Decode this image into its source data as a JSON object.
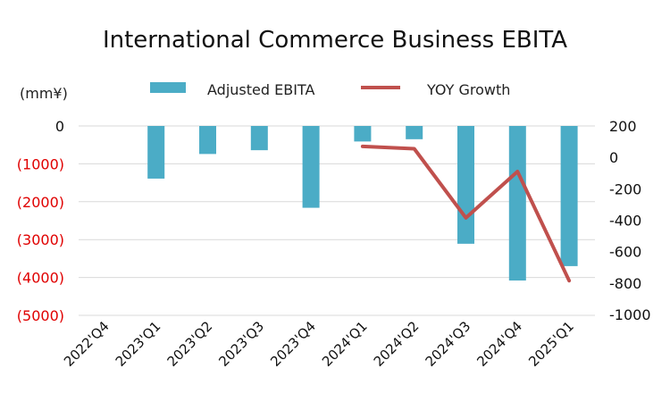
{
  "chart_data": {
    "type": "bar",
    "title": "International Commerce Business EBITA",
    "y_unit_label": "(mm¥)",
    "categories": [
      "2022'Q4",
      "2023'Q1",
      "2023'Q2",
      "2023'Q3",
      "2023'Q4",
      "2024'Q1",
      "2024'Q2",
      "2024'Q3",
      "2024'Q4",
      "2025'Q1"
    ],
    "series": [
      {
        "name": "Adjusted EBITA",
        "type": "bar",
        "axis": "left",
        "color": "#4BACC6",
        "values": [
          0,
          -1390,
          -740,
          -640,
          -2160,
          -410,
          -350,
          -3110,
          -4080,
          -3700
        ]
      },
      {
        "name": "YOY Growth",
        "type": "line",
        "axis": "right",
        "color": "#C0504D",
        "values": [
          null,
          null,
          null,
          null,
          null,
          70,
          55,
          -385,
          -90,
          -785
        ]
      }
    ],
    "y_left": {
      "range": [
        -5000,
        0
      ],
      "tick_labels": [
        "0",
        "(1000)",
        "(2000)",
        "(3000)",
        "(4000)",
        "(5000)"
      ],
      "tick_values": [
        0,
        -1000,
        -2000,
        -3000,
        -4000,
        -5000
      ],
      "positive_color": "#111111",
      "negative_color": "#E00000"
    },
    "y_right": {
      "range": [
        -1000,
        200
      ],
      "tick_labels": [
        "200",
        "0",
        "-200",
        "-400",
        "-600",
        "-800",
        "-1000"
      ],
      "tick_values": [
        200,
        0,
        -200,
        -400,
        -600,
        -800,
        -1000
      ]
    },
    "grid": true,
    "legend_position": "top"
  }
}
